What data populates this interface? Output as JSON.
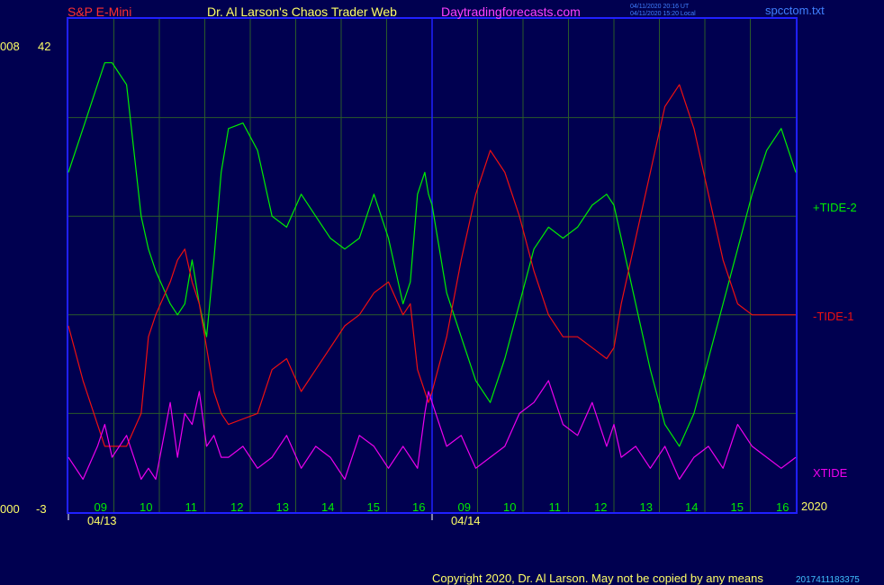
{
  "header": {
    "symbol": "S&P E-Mini",
    "site": "Dr. Al Larson's Chaos Trader Web",
    "url": "Daytradingforecasts.com",
    "time_ut": "04/11/2020 20:16 UT",
    "time_local": "04/11/2020 15:20 Local",
    "file": "spcctom.txt"
  },
  "footer": {
    "copyright": "Copyright 2020, Dr. Al Larson. May not be copied by any means",
    "code": "2017411183375"
  },
  "colors": {
    "background": "#000050",
    "frame": "#2020ff",
    "grid": "#2a5a2a",
    "tide2": "#00ee00",
    "tide1": "#ee1010",
    "xtide": "#ee00ee",
    "axis_text": "#ffff66",
    "header_red": "#ff3030",
    "header_magenta": "#ff40ff",
    "header_blue": "#4080ff"
  },
  "chart_data": {
    "type": "line",
    "ylim": [
      -3,
      42
    ],
    "y_top_label": "42",
    "y_bottom_label": "-3",
    "y_left_top": "008",
    "y_left_bottom": "000",
    "year_label": "2020",
    "date_labels": [
      "04/13",
      "04/14"
    ],
    "hour_ticks": [
      "09",
      "10",
      "11",
      "12",
      "13",
      "14",
      "15",
      "16",
      "09",
      "10",
      "11",
      "12",
      "13",
      "14",
      "15",
      "16"
    ],
    "x": [
      0,
      2,
      4,
      5,
      6,
      8,
      10,
      11,
      12,
      14,
      15,
      16,
      17,
      18,
      19,
      20,
      21,
      22,
      24,
      26,
      28,
      30,
      32,
      34,
      36,
      38,
      40,
      42,
      44,
      46,
      47,
      48,
      49,
      49.5,
      50,
      52,
      54,
      56,
      58,
      60,
      62,
      64,
      66,
      68,
      70,
      72,
      74,
      75,
      76,
      78,
      80,
      82,
      84,
      86,
      88,
      90,
      92,
      94,
      96,
      98,
      100
    ],
    "series": [
      {
        "name": "+TIDE-2",
        "label": "+TIDE-2",
        "values": [
          28,
          32,
          36,
          38,
          38,
          36,
          24,
          21,
          19,
          16,
          15,
          16,
          20,
          16,
          13,
          20,
          28,
          32,
          32.5,
          30,
          24,
          23,
          26,
          24,
          22,
          21,
          22,
          26,
          22,
          16,
          18,
          26,
          28,
          26,
          25,
          17,
          13,
          9,
          7,
          11,
          16,
          21,
          23,
          22,
          23,
          25,
          26,
          25,
          22,
          16,
          10,
          5,
          3,
          6,
          11,
          16,
          21,
          26,
          30,
          32,
          28
        ]
      },
      {
        "name": "-TIDE-1",
        "label": "-TIDE-1",
        "values": [
          14,
          9,
          5,
          3,
          3,
          3,
          6,
          13,
          15,
          18,
          20,
          21,
          18,
          16,
          12,
          8,
          6,
          5,
          5.5,
          6,
          10,
          11,
          8,
          10,
          12,
          14,
          15,
          17,
          18,
          15,
          16,
          10,
          8,
          7,
          8,
          13,
          20,
          26,
          30,
          28,
          24,
          19,
          15,
          13,
          13,
          12,
          11,
          12,
          16,
          22,
          28,
          34,
          36,
          32,
          26,
          20,
          16,
          15,
          15,
          15,
          15
        ]
      },
      {
        "name": "XTIDE",
        "label": "XTIDE",
        "values": [
          2,
          0,
          3,
          5,
          2,
          4,
          0,
          1,
          0,
          7,
          2,
          6,
          5,
          8,
          3,
          4,
          2,
          2,
          3,
          1,
          2,
          4,
          1,
          3,
          2,
          0,
          4,
          3,
          1,
          3,
          2,
          1,
          6,
          8,
          7,
          3,
          4,
          1,
          2,
          3,
          6,
          7,
          9,
          5,
          4,
          7,
          3,
          5,
          2,
          3,
          1,
          3,
          0,
          2,
          3,
          1,
          5,
          3,
          2,
          1,
          2
        ]
      }
    ]
  }
}
